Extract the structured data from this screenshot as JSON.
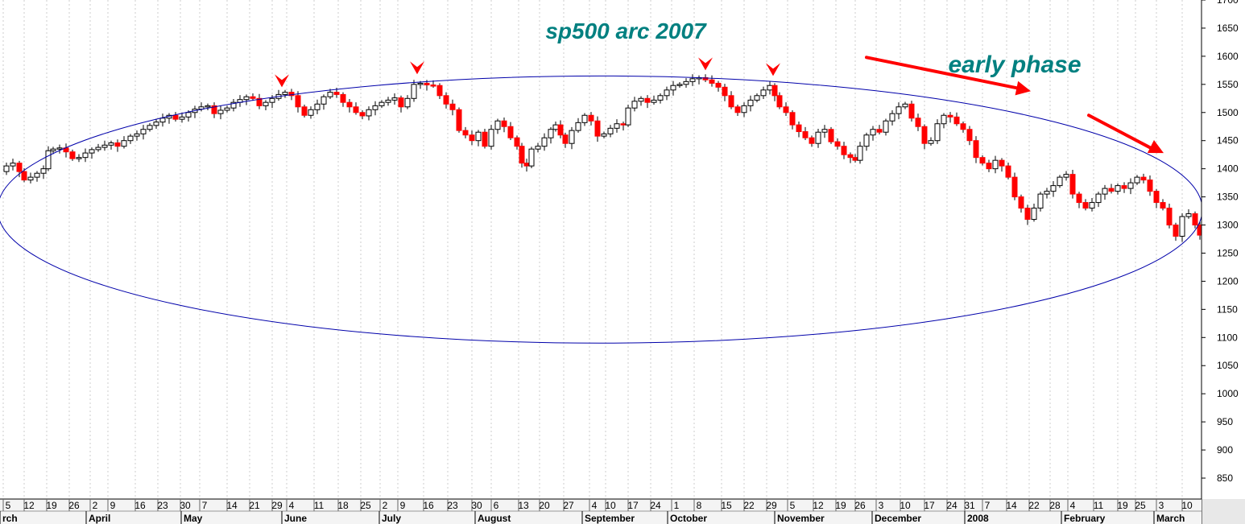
{
  "chart_data": {
    "type": "candlestick",
    "title": "sp500 arc 2007",
    "annotation": "early phase",
    "colors": {
      "up_candle": "#000000",
      "down_candle": "#ff0000",
      "arc": "#0000aa",
      "text": "#008080",
      "arrows": "#ff0000",
      "grid": "#cccccc"
    },
    "ylim": [
      800,
      1700
    ],
    "y_ticks": [
      850,
      900,
      950,
      1000,
      1050,
      1100,
      1150,
      1200,
      1250,
      1300,
      1350,
      1400,
      1450,
      1500,
      1550,
      1600,
      1650,
      1700
    ],
    "grid": "vertical-dotted",
    "y_axis": "right",
    "x_day_ticks": [
      "5",
      "12",
      "19",
      "26",
      "2",
      "9",
      "16",
      "23",
      "30",
      "7",
      "14",
      "21",
      "29",
      "4",
      "11",
      "18",
      "25",
      "2",
      "9",
      "16",
      "23",
      "30",
      "6",
      "13",
      "20",
      "27",
      "4",
      "10",
      "17",
      "24",
      "1",
      "8",
      "15",
      "22",
      "29",
      "5",
      "12",
      "19",
      "26",
      "3",
      "10",
      "17",
      "24",
      "31",
      "7",
      "14",
      "22",
      "28",
      "4",
      "11",
      "19",
      "25",
      "3",
      "10"
    ],
    "x_month_labels": [
      "rch",
      "April",
      "May",
      "June",
      "July",
      "August",
      "September",
      "October",
      "November",
      "December",
      "2008",
      "February",
      "March"
    ],
    "close_path": [
      [
        0,
        1395
      ],
      [
        8,
        1405
      ],
      [
        16,
        1410
      ],
      [
        24,
        1395
      ],
      [
        30,
        1380
      ],
      [
        38,
        1385
      ],
      [
        46,
        1392
      ],
      [
        54,
        1400
      ],
      [
        60,
        1432
      ],
      [
        66,
        1435
      ],
      [
        74,
        1437
      ],
      [
        82,
        1430
      ],
      [
        90,
        1418
      ],
      [
        98,
        1420
      ],
      [
        106,
        1428
      ],
      [
        114,
        1434
      ],
      [
        122,
        1438
      ],
      [
        130,
        1442
      ],
      [
        138,
        1446
      ],
      [
        146,
        1440
      ],
      [
        154,
        1450
      ],
      [
        162,
        1458
      ],
      [
        170,
        1462
      ],
      [
        178,
        1470
      ],
      [
        186,
        1477
      ],
      [
        194,
        1483
      ],
      [
        202,
        1490
      ],
      [
        210,
        1495
      ],
      [
        218,
        1488
      ],
      [
        226,
        1492
      ],
      [
        234,
        1500
      ],
      [
        242,
        1506
      ],
      [
        250,
        1510
      ],
      [
        258,
        1512
      ],
      [
        266,
        1498
      ],
      [
        274,
        1504
      ],
      [
        282,
        1508
      ],
      [
        290,
        1518
      ],
      [
        298,
        1523
      ],
      [
        306,
        1528
      ],
      [
        314,
        1525
      ],
      [
        322,
        1512
      ],
      [
        330,
        1518
      ],
      [
        338,
        1525
      ],
      [
        346,
        1532
      ],
      [
        354,
        1536
      ],
      [
        362,
        1530
      ],
      [
        370,
        1510
      ],
      [
        378,
        1495
      ],
      [
        386,
        1505
      ],
      [
        394,
        1515
      ],
      [
        402,
        1528
      ],
      [
        410,
        1536
      ],
      [
        418,
        1532
      ],
      [
        426,
        1518
      ],
      [
        434,
        1510
      ],
      [
        442,
        1500
      ],
      [
        450,
        1494
      ],
      [
        458,
        1505
      ],
      [
        466,
        1512
      ],
      [
        474,
        1518
      ],
      [
        482,
        1522
      ],
      [
        490,
        1526
      ],
      [
        498,
        1510
      ],
      [
        506,
        1525
      ],
      [
        514,
        1550
      ],
      [
        522,
        1552
      ],
      [
        530,
        1549
      ],
      [
        538,
        1548
      ],
      [
        546,
        1530
      ],
      [
        554,
        1515
      ],
      [
        562,
        1505
      ],
      [
        570,
        1468
      ],
      [
        578,
        1460
      ],
      [
        586,
        1450
      ],
      [
        594,
        1465
      ],
      [
        602,
        1440
      ],
      [
        610,
        1470
      ],
      [
        618,
        1485
      ],
      [
        626,
        1475
      ],
      [
        634,
        1455
      ],
      [
        642,
        1440
      ],
      [
        648,
        1410
      ],
      [
        654,
        1405
      ],
      [
        660,
        1435
      ],
      [
        668,
        1440
      ],
      [
        676,
        1455
      ],
      [
        684,
        1470
      ],
      [
        690,
        1478
      ],
      [
        696,
        1460
      ],
      [
        702,
        1445
      ],
      [
        710,
        1468
      ],
      [
        718,
        1482
      ],
      [
        726,
        1495
      ],
      [
        734,
        1485
      ],
      [
        742,
        1458
      ],
      [
        750,
        1462
      ],
      [
        758,
        1472
      ],
      [
        766,
        1480
      ],
      [
        774,
        1478
      ],
      [
        780,
        1508
      ],
      [
        788,
        1520
      ],
      [
        796,
        1525
      ],
      [
        804,
        1518
      ],
      [
        812,
        1522
      ],
      [
        820,
        1530
      ],
      [
        828,
        1540
      ],
      [
        836,
        1548
      ],
      [
        844,
        1550
      ],
      [
        852,
        1555
      ],
      [
        860,
        1560
      ],
      [
        868,
        1562
      ],
      [
        876,
        1558
      ],
      [
        884,
        1552
      ],
      [
        892,
        1545
      ],
      [
        900,
        1530
      ],
      [
        908,
        1510
      ],
      [
        916,
        1500
      ],
      [
        924,
        1512
      ],
      [
        932,
        1522
      ],
      [
        940,
        1530
      ],
      [
        948,
        1540
      ],
      [
        956,
        1548
      ],
      [
        962,
        1530
      ],
      [
        968,
        1510
      ],
      [
        976,
        1500
      ],
      [
        984,
        1478
      ],
      [
        992,
        1466
      ],
      [
        1000,
        1455
      ],
      [
        1008,
        1445
      ],
      [
        1016,
        1465
      ],
      [
        1024,
        1470
      ],
      [
        1032,
        1448
      ],
      [
        1040,
        1440
      ],
      [
        1048,
        1425
      ],
      [
        1056,
        1420
      ],
      [
        1062,
        1415
      ],
      [
        1068,
        1440
      ],
      [
        1076,
        1460
      ],
      [
        1084,
        1470
      ],
      [
        1092,
        1465
      ],
      [
        1100,
        1485
      ],
      [
        1108,
        1498
      ],
      [
        1116,
        1510
      ],
      [
        1124,
        1515
      ],
      [
        1132,
        1490
      ],
      [
        1140,
        1475
      ],
      [
        1148,
        1445
      ],
      [
        1156,
        1450
      ],
      [
        1164,
        1480
      ],
      [
        1172,
        1495
      ],
      [
        1180,
        1492
      ],
      [
        1188,
        1480
      ],
      [
        1196,
        1470
      ],
      [
        1204,
        1450
      ],
      [
        1212,
        1420
      ],
      [
        1220,
        1410
      ],
      [
        1228,
        1400
      ],
      [
        1236,
        1415
      ],
      [
        1244,
        1405
      ],
      [
        1252,
        1385
      ],
      [
        1260,
        1350
      ],
      [
        1268,
        1330
      ],
      [
        1276,
        1310
      ],
      [
        1284,
        1330
      ],
      [
        1292,
        1355
      ],
      [
        1300,
        1360
      ],
      [
        1308,
        1370
      ],
      [
        1316,
        1385
      ],
      [
        1324,
        1390
      ],
      [
        1332,
        1355
      ],
      [
        1340,
        1340
      ],
      [
        1348,
        1330
      ],
      [
        1356,
        1340
      ],
      [
        1364,
        1355
      ],
      [
        1372,
        1365
      ],
      [
        1380,
        1360
      ],
      [
        1388,
        1370
      ],
      [
        1396,
        1365
      ],
      [
        1404,
        1375
      ],
      [
        1412,
        1385
      ],
      [
        1420,
        1380
      ],
      [
        1428,
        1360
      ],
      [
        1436,
        1340
      ],
      [
        1444,
        1330
      ],
      [
        1452,
        1300
      ],
      [
        1460,
        1280
      ],
      [
        1468,
        1315
      ],
      [
        1476,
        1320
      ],
      [
        1484,
        1300
      ],
      [
        1490,
        1282
      ]
    ],
    "arc_ellipse_data": {
      "center_y": 1330,
      "top_y": 1565,
      "bottom_y": 1090
    },
    "marker_arrows": [
      [
        350,
        1545
      ],
      [
        518,
        1568
      ],
      [
        876,
        1575
      ],
      [
        960,
        1565
      ]
    ],
    "trend_arrows": [
      [
        [
          1076,
          1598
        ],
        [
          1280,
          1538
        ]
      ],
      [
        [
          1352,
          1495
        ],
        [
          1445,
          1428
        ]
      ]
    ]
  }
}
